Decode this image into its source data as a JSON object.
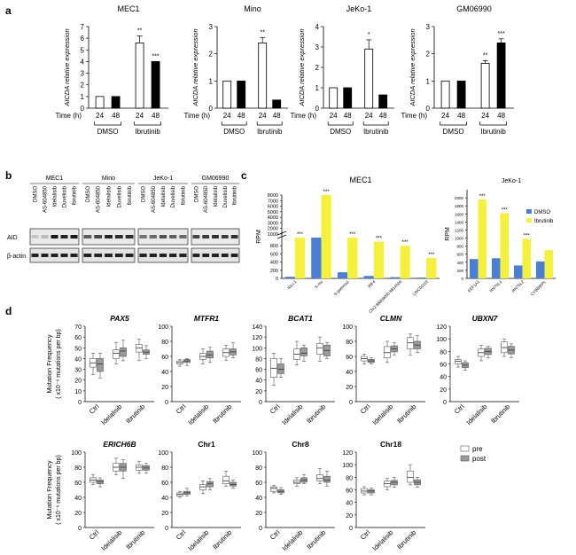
{
  "panel_labels": {
    "a": "a",
    "b": "b",
    "c": "c",
    "d": "d"
  },
  "colors": {
    "dmso": "#4a7fd9",
    "ibrutinib": "#f5f03a",
    "pre_box": "#ffffff",
    "post_box": "#9a9a9a",
    "axis": "#000000"
  },
  "panel_a": {
    "ylabel": "AICDA relative expression",
    "xlabel": "Time (h)",
    "time_labels": [
      "24",
      "48",
      "24",
      "48"
    ],
    "group_labels": [
      "DMSO",
      "Ibrutinib"
    ]
  },
  "panel_b": {
    "cell_lines": [
      "MEC1",
      "Mino",
      "JeKo-1",
      "GM06990"
    ],
    "lanes": [
      "DMSO",
      "AS-604850",
      "Idelalisib",
      "Duvelisib",
      "Ibrutinib"
    ],
    "blots": [
      "AID",
      "β-actin"
    ]
  },
  "panel_c": {
    "ylabel": "RPM",
    "legend": [
      "DMSO",
      "Ibrutinib"
    ],
    "sig": "***"
  },
  "panel_d": {
    "ylabel_line1": "Mutation Frequency",
    "ylabel_line2": "( x10⁻⁶ mutations per bp)",
    "categories": [
      "Ctrl",
      "Idelalisib",
      "Ibrutinib"
    ],
    "legend": [
      "pre",
      "post"
    ]
  },
  "chart_data": [
    {
      "type": "bar",
      "id": "a-MEC1",
      "title": "MEC1",
      "categories": [
        "DMSO 24",
        "DMSO 48",
        "Ibrutinib 24",
        "Ibrutinib 48"
      ],
      "values": [
        1,
        1,
        5.6,
        4.0
      ],
      "errors": [
        0,
        0,
        0.6,
        0
      ],
      "significance": [
        "",
        "",
        "**",
        "***"
      ],
      "ylim": [
        0,
        7
      ],
      "yticks": [
        0,
        1,
        2,
        3,
        4,
        5,
        6,
        7
      ],
      "ylabel": "AICDA relative expression",
      "xlabel": "Time (h)"
    },
    {
      "type": "bar",
      "id": "a-Mino",
      "title": "Mino",
      "categories": [
        "DMSO 24",
        "DMSO 48",
        "Ibrutinib 24",
        "Ibrutinib 48"
      ],
      "values": [
        1,
        1,
        2.4,
        0.3
      ],
      "errors": [
        0,
        0,
        0.2,
        0
      ],
      "significance": [
        "",
        "",
        "**",
        ""
      ],
      "ylim": [
        0,
        3
      ],
      "yticks": [
        0,
        1,
        2,
        3
      ],
      "ylabel": "AICDA relative expression",
      "xlabel": "Time (h)"
    },
    {
      "type": "bar",
      "id": "a-JeKo-1",
      "title": "JeKo-1",
      "categories": [
        "DMSO 24",
        "DMSO 48",
        "Ibrutinib 24",
        "Ibrutinib 48"
      ],
      "values": [
        1,
        1,
        2.9,
        0.65
      ],
      "errors": [
        0,
        0,
        0.45,
        0
      ],
      "significance": [
        "",
        "",
        "*",
        ""
      ],
      "ylim": [
        0,
        4
      ],
      "yticks": [
        0,
        1,
        2,
        3,
        4
      ],
      "ylabel": "AICDA relative expression",
      "xlabel": "Time (h)"
    },
    {
      "type": "bar",
      "id": "a-GM06990",
      "title": "GM06990",
      "categories": [
        "DMSO 24",
        "DMSO 48",
        "Ibrutinib 24",
        "Ibrutinib 48"
      ],
      "values": [
        1,
        1,
        1.65,
        2.4
      ],
      "errors": [
        0,
        0,
        0.1,
        0.15
      ],
      "significance": [
        "",
        "",
        "**",
        "***"
      ],
      "ylim": [
        0,
        3
      ],
      "yticks": [
        0,
        1,
        2,
        3
      ],
      "ylabel": "AICDA relative expression",
      "xlabel": "Time (h)"
    },
    {
      "type": "bar",
      "id": "c-MEC1",
      "title": "MEC1",
      "broken_axis": true,
      "upper_ylim": [
        1000,
        8000
      ],
      "upper_yticks": [
        1000,
        2000,
        3000,
        4000,
        5000,
        6000,
        7000,
        8000
      ],
      "lower_ylim": [
        0,
        1000
      ],
      "lower_yticks": [
        0,
        200,
        400,
        600,
        800
      ],
      "categories": [
        "IGLL1",
        "S-mu",
        "S-gamma1",
        "IRF4",
        "Chr2:88809000-8814500",
        "LINC01119"
      ],
      "series": [
        {
          "name": "DMSO",
          "values": [
            40,
            1000,
            150,
            60,
            30,
            20
          ]
        },
        {
          "name": "Ibrutinib",
          "values": [
            1000,
            8000,
            1000,
            900,
            800,
            500
          ]
        }
      ],
      "significance": [
        "***",
        "***",
        "***",
        "***",
        "***",
        "***"
      ],
      "ylabel": "RPM"
    },
    {
      "type": "bar",
      "id": "c-JeKo-1",
      "title": "JeKo-1",
      "categories": [
        "EEF1A1",
        "RN7SL1",
        "RN7SL2",
        "CYBB/RPL"
      ],
      "series": [
        {
          "name": "DMSO",
          "values": [
            480,
            500,
            320,
            420
          ]
        },
        {
          "name": "Ibrutinib",
          "values": [
            1960,
            1620,
            980,
            700
          ]
        }
      ],
      "significance": [
        "***",
        "***",
        "***",
        ""
      ],
      "ylim": [
        0,
        2200
      ],
      "yticks": [
        0,
        200,
        400,
        600,
        800,
        1000,
        1200,
        1400,
        1600,
        1800,
        2000
      ],
      "ylabel": "RPM"
    },
    {
      "type": "box",
      "id": "d-PAX5",
      "title": "PAX5",
      "categories": [
        "Ctrl",
        "Idelalisib",
        "Ibrutinib"
      ],
      "ylim": [
        0,
        70
      ],
      "yticks": [
        0,
        10,
        20,
        30,
        40,
        50,
        60,
        70
      ],
      "series": [
        {
          "name": "pre",
          "boxes": [
            [
              25,
              32,
              36,
              40,
              45
            ],
            [
              35,
              40,
              45,
              48,
              55
            ],
            [
              38,
              46,
              50,
              53,
              58
            ]
          ]
        },
        {
          "name": "post",
          "boxes": [
            [
              22,
              28,
              35,
              40,
              45
            ],
            [
              38,
              42,
              47,
              50,
              57
            ],
            [
              40,
              44,
              46,
              48,
              52
            ]
          ]
        }
      ]
    },
    {
      "type": "box",
      "id": "d-MTFR1",
      "title": "MTFR1",
      "categories": [
        "Ctrl",
        "Idelalisib",
        "Ibrutinib"
      ],
      "ylim": [
        0,
        100
      ],
      "yticks": [
        0,
        20,
        40,
        60,
        80,
        100
      ],
      "series": [
        {
          "name": "pre",
          "boxes": [
            [
              47,
              50,
              52,
              54,
              56
            ],
            [
              50,
              56,
              60,
              64,
              70
            ],
            [
              55,
              60,
              65,
              70,
              75
            ]
          ]
        },
        {
          "name": "post",
          "boxes": [
            [
              48,
              52,
              54,
              56,
              57
            ],
            [
              52,
              58,
              62,
              67,
              72
            ],
            [
              58,
              62,
              66,
              70,
              78
            ]
          ]
        }
      ]
    },
    {
      "type": "box",
      "id": "d-BCAT1",
      "title": "BCAT1",
      "categories": [
        "Ctrl",
        "Idelalisib",
        "Ibrutinib"
      ],
      "ylim": [
        0,
        140
      ],
      "yticks": [
        0,
        20,
        40,
        60,
        80,
        100,
        120,
        140
      ],
      "series": [
        {
          "name": "pre",
          "boxes": [
            [
              30,
              45,
              62,
              80,
              90
            ],
            [
              68,
              78,
              88,
              98,
              112
            ],
            [
              75,
              88,
              100,
              108,
              120
            ]
          ]
        },
        {
          "name": "post",
          "boxes": [
            [
              45,
              52,
              60,
              70,
              80
            ],
            [
              75,
              85,
              90,
              100,
              105
            ],
            [
              80,
              85,
              95,
              105,
              110
            ]
          ]
        }
      ]
    },
    {
      "type": "box",
      "id": "d-CLMN",
      "title": "CLMN",
      "categories": [
        "Ctrl",
        "Idelalisib",
        "Ibrutinib"
      ],
      "ylim": [
        0,
        100
      ],
      "yticks": [
        0,
        20,
        40,
        60,
        80,
        100
      ],
      "series": [
        {
          "name": "pre",
          "boxes": [
            [
              50,
              54,
              57,
              60,
              63
            ],
            [
              52,
              58,
              65,
              73,
              80
            ],
            [
              62,
              70,
              78,
              85,
              90
            ]
          ]
        },
        {
          "name": "post",
          "boxes": [
            [
              50,
              52,
              54,
              56,
              58
            ],
            [
              62,
              66,
              70,
              74,
              78
            ],
            [
              65,
              70,
              75,
              80,
              88
            ]
          ]
        }
      ]
    },
    {
      "type": "box",
      "id": "d-UBXN7",
      "title": "UBXN7",
      "categories": [
        "Ctrl",
        "Idelalisib",
        "Ibrutinib"
      ],
      "ylim": [
        0,
        120
      ],
      "yticks": [
        0,
        20,
        40,
        60,
        80,
        100,
        120
      ],
      "series": [
        {
          "name": "pre",
          "boxes": [
            [
              55,
              60,
              64,
              67,
              72
            ],
            [
              65,
              72,
              78,
              84,
              90
            ],
            [
              72,
              78,
              86,
              95,
              100
            ]
          ]
        },
        {
          "name": "post",
          "boxes": [
            [
              50,
              54,
              58,
              62,
              65
            ],
            [
              70,
              75,
              80,
              85,
              88
            ],
            [
              70,
              76,
              82,
              88,
              92
            ]
          ]
        }
      ]
    },
    {
      "type": "box",
      "id": "d-ERICH6B",
      "title": "ERICH6B",
      "categories": [
        "Ctrl",
        "Idelalisib",
        "Ibrutinib"
      ],
      "ylim": [
        0,
        100
      ],
      "yticks": [
        0,
        20,
        40,
        60,
        80,
        100
      ],
      "series": [
        {
          "name": "pre",
          "boxes": [
            [
              57,
              60,
              63,
              66,
              70
            ],
            [
              70,
              75,
              80,
              85,
              92
            ],
            [
              72,
              76,
              80,
              83,
              88
            ]
          ]
        },
        {
          "name": "post",
          "boxes": [
            [
              54,
              58,
              61,
              63,
              66
            ],
            [
              65,
              75,
              80,
              85,
              90
            ],
            [
              72,
              76,
              79,
              82,
              85
            ]
          ]
        }
      ]
    },
    {
      "type": "box",
      "id": "d-Chr1",
      "title": "Chr1",
      "categories": [
        "Ctrl",
        "Idelalisib",
        "Ibrutinib"
      ],
      "ylim": [
        0,
        100
      ],
      "yticks": [
        0,
        20,
        40,
        60,
        80,
        100
      ],
      "series": [
        {
          "name": "pre",
          "boxes": [
            [
              40,
              42,
              44,
              46,
              48
            ],
            [
              45,
              50,
              54,
              57,
              62
            ],
            [
              55,
              58,
              62,
              68,
              75
            ]
          ]
        },
        {
          "name": "post",
          "boxes": [
            [
              42,
              44,
              46,
              48,
              52
            ],
            [
              50,
              54,
              58,
              61,
              65
            ],
            [
              52,
              55,
              57,
              60,
              63
            ]
          ]
        }
      ]
    },
    {
      "type": "box",
      "id": "d-Chr8",
      "title": "Chr8",
      "categories": [
        "Ctrl",
        "Idelalisib",
        "Ibrutinib"
      ],
      "ylim": [
        0,
        100
      ],
      "yticks": [
        0,
        20,
        40,
        60,
        80,
        100
      ],
      "series": [
        {
          "name": "pre",
          "boxes": [
            [
              46,
              48,
              52,
              54,
              56
            ],
            [
              55,
              58,
              60,
              63,
              66
            ],
            [
              58,
              62,
              65,
              70,
              78
            ]
          ]
        },
        {
          "name": "post",
          "boxes": [
            [
              44,
              46,
              48,
              50,
              53
            ],
            [
              58,
              60,
              63,
              66,
              70
            ],
            [
              55,
              60,
              63,
              68,
              75
            ]
          ]
        }
      ]
    },
    {
      "type": "box",
      "id": "d-Chr18",
      "title": "Chr18",
      "categories": [
        "Ctrl",
        "Idelalisib",
        "Ibrutinib"
      ],
      "ylim": [
        0,
        120
      ],
      "yticks": [
        0,
        20,
        40,
        60,
        80,
        100,
        120
      ],
      "series": [
        {
          "name": "pre",
          "boxes": [
            [
              52,
              55,
              58,
              62,
              65
            ],
            [
              60,
              65,
              70,
              74,
              78
            ],
            [
              68,
              72,
              80,
              90,
              100
            ]
          ]
        },
        {
          "name": "post",
          "boxes": [
            [
              52,
              55,
              58,
              60,
              63
            ],
            [
              64,
              68,
              72,
              75,
              80
            ],
            [
              64,
              68,
              72,
              76,
              80
            ]
          ]
        }
      ]
    }
  ]
}
